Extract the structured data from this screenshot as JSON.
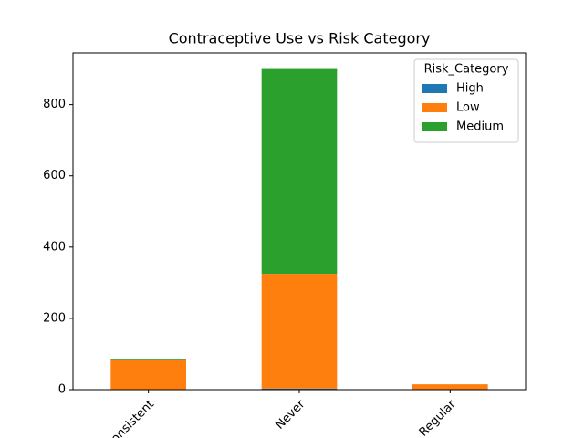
{
  "chart_data": {
    "type": "stacked_bar",
    "title": "Contraceptive Use vs Risk Category",
    "categories": [
      "Inconsistent",
      "Never",
      "Regular"
    ],
    "series": [
      {
        "name": "High",
        "color": "#1f77b4",
        "values": [
          0,
          3,
          0
        ]
      },
      {
        "name": "Low",
        "color": "#ff7f0e",
        "values": [
          85,
          322,
          15
        ]
      },
      {
        "name": "Medium",
        "color": "#2ca02c",
        "values": [
          2,
          575,
          0
        ]
      }
    ],
    "legend_title": "Risk_Category",
    "legend": "upper right",
    "ylim": [
      0,
      945
    ],
    "yticks": [
      0,
      200,
      400,
      600,
      800
    ],
    "grid": false
  }
}
